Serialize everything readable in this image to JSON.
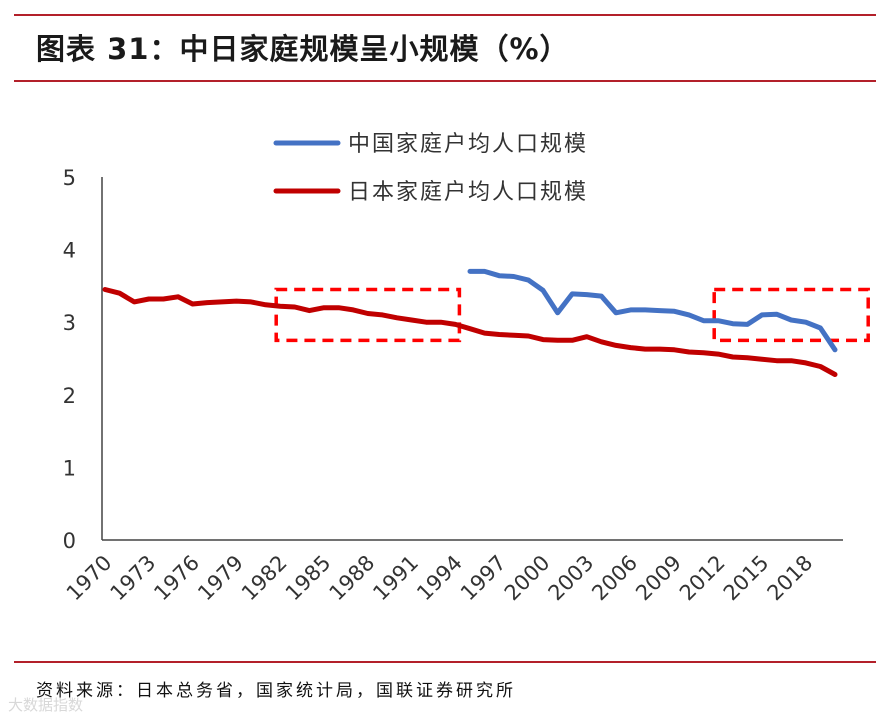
{
  "title": "图表 31：中日家庭规模呈小规模（%）",
  "source": "资料来源：日本总务省，国家统计局，国联证券研究所",
  "watermark": "大数据指数",
  "chart_data": {
    "type": "line",
    "title": "图表 31：中日家庭规模呈小规模（%）",
    "xlabel": "",
    "ylabel": "",
    "xlim": [
      1970,
      2020
    ],
    "ylim": [
      0,
      5
    ],
    "yticks": [
      0,
      1,
      2,
      3,
      4,
      5
    ],
    "xticks": [
      1970,
      1973,
      1976,
      1979,
      1982,
      1985,
      1988,
      1991,
      1994,
      1997,
      2000,
      2003,
      2006,
      2009,
      2012,
      2015,
      2018
    ],
    "grid": false,
    "legend_position": "top-right",
    "series": [
      {
        "name": "中国家庭户均人口规模",
        "color": "#4472c4",
        "x": [
          1995,
          1996,
          1997,
          1998,
          1999,
          2000,
          2001,
          2002,
          2003,
          2004,
          2005,
          2006,
          2007,
          2008,
          2009,
          2010,
          2011,
          2012,
          2013,
          2014,
          2015,
          2016,
          2017,
          2018,
          2019,
          2020
        ],
        "values": [
          3.7,
          3.7,
          3.64,
          3.63,
          3.58,
          3.44,
          3.13,
          3.39,
          3.38,
          3.36,
          3.13,
          3.17,
          3.17,
          3.16,
          3.15,
          3.1,
          3.02,
          3.02,
          2.98,
          2.97,
          3.1,
          3.11,
          3.03,
          3.0,
          2.92,
          2.62
        ]
      },
      {
        "name": "日本家庭户均人口规模",
        "color": "#c00000",
        "x": [
          1970,
          1971,
          1972,
          1973,
          1974,
          1975,
          1976,
          1977,
          1978,
          1979,
          1980,
          1981,
          1982,
          1983,
          1984,
          1985,
          1986,
          1987,
          1988,
          1989,
          1990,
          1991,
          1992,
          1993,
          1994,
          1995,
          1996,
          1997,
          1998,
          1999,
          2000,
          2001,
          2002,
          2003,
          2004,
          2005,
          2006,
          2007,
          2008,
          2009,
          2010,
          2011,
          2012,
          2013,
          2014,
          2015,
          2016,
          2017,
          2018,
          2019,
          2020
        ],
        "values": [
          3.45,
          3.4,
          3.28,
          3.32,
          3.32,
          3.35,
          3.25,
          3.27,
          3.28,
          3.29,
          3.28,
          3.24,
          3.22,
          3.21,
          3.16,
          3.2,
          3.2,
          3.17,
          3.12,
          3.1,
          3.06,
          3.03,
          3.0,
          3.0,
          2.97,
          2.91,
          2.85,
          2.83,
          2.82,
          2.81,
          2.76,
          2.75,
          2.75,
          2.8,
          2.73,
          2.68,
          2.65,
          2.63,
          2.63,
          2.62,
          2.59,
          2.58,
          2.56,
          2.52,
          2.51,
          2.49,
          2.47,
          2.47,
          2.44,
          2.39,
          2.28
        ]
      }
    ],
    "annotations": [
      {
        "type": "dashed-box",
        "color": "#ff0000",
        "x_range": [
          1982,
          1994
        ],
        "y_range": [
          2.75,
          3.45
        ]
      },
      {
        "type": "dashed-box",
        "color": "#ff0000",
        "x_range": [
          2012,
          2022
        ],
        "y_range": [
          2.75,
          3.45
        ]
      }
    ]
  }
}
